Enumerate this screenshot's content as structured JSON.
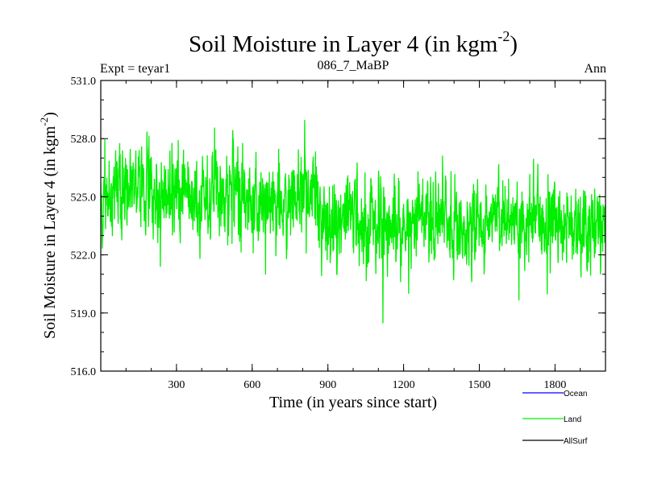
{
  "chart_data": {
    "type": "line",
    "title": "Soil Moisture in Layer 4 (in kgm",
    "title_superscript": "-2",
    "title_suffix": ")",
    "subtitle_left": "Expt = teyar1",
    "subtitle_center": "086_7_MaBP",
    "subtitle_right": "Ann",
    "xlabel": "Time (in years since start)",
    "ylabel": "Soil Moisture in Layer 4 (in kgm",
    "ylabel_superscript": "-2",
    "ylabel_suffix": ")",
    "xlim": [
      0,
      2000
    ],
    "ylim": [
      516.0,
      531.0
    ],
    "x_ticks": [
      300,
      600,
      900,
      1200,
      1500,
      1800
    ],
    "x_tick_labels": [
      "300",
      "600",
      "900",
      "1200",
      "1500",
      "1800"
    ],
    "y_ticks": [
      516.0,
      519.0,
      522.0,
      525.0,
      528.0,
      531.0
    ],
    "y_tick_labels": [
      "516.0",
      "519.0",
      "522.0",
      "525.0",
      "528.0",
      "531.0"
    ],
    "legend_placement": "bottom-right",
    "series": [
      {
        "name": "Ocean",
        "color": "#0000ff",
        "x": [],
        "values": []
      },
      {
        "name": "Land",
        "color": "#00ee00",
        "x": [
          0,
          50,
          100,
          150,
          200,
          250,
          300,
          350,
          400,
          450,
          500,
          550,
          600,
          650,
          700,
          750,
          800,
          850,
          900,
          950,
          1000,
          1050,
          1100,
          1150,
          1200,
          1250,
          1300,
          1350,
          1400,
          1450,
          1500,
          1550,
          1600,
          1650,
          1700,
          1750,
          1800,
          1850,
          1900,
          1950,
          2000
        ],
        "values": [
          525.0,
          525.4,
          525.2,
          525.3,
          525.1,
          525.0,
          525.2,
          525.1,
          525.0,
          525.2,
          525.3,
          525.0,
          524.8,
          524.8,
          524.7,
          524.8,
          524.9,
          524.8,
          523.6,
          523.8,
          523.9,
          523.7,
          523.9,
          523.8,
          523.4,
          523.7,
          524.0,
          523.7,
          523.2,
          523.6,
          523.5,
          523.7,
          524.2,
          523.9,
          523.8,
          523.8,
          523.9,
          523.5,
          523.3,
          523.6,
          523.8
        ]
      },
      {
        "name": "AllSurf",
        "color": "#000000",
        "x": [],
        "values": []
      }
    ]
  }
}
